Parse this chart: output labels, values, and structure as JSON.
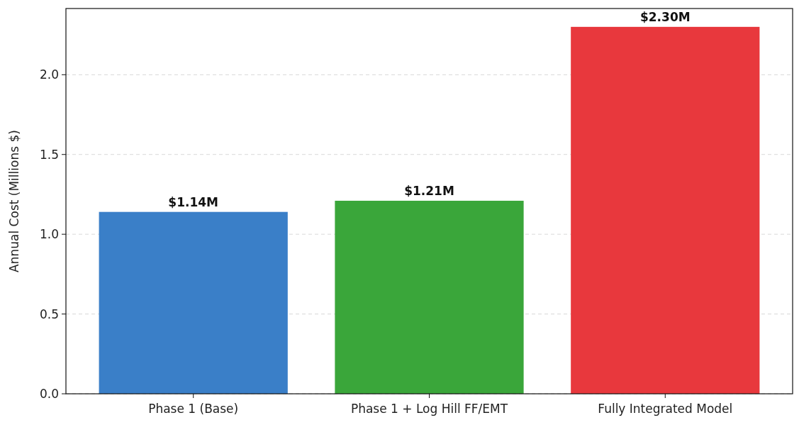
{
  "chart_data": {
    "type": "bar",
    "ylabel": "Annual Cost (Millions $)",
    "categories": [
      "Phase 1 (Base)",
      "Phase 1 + Log Hill FF/EMT",
      "Fully Integrated Model"
    ],
    "values": [
      1.14,
      1.21,
      2.3
    ],
    "colors": [
      "#3a7fc8",
      "#3aa63a",
      "#e8383d"
    ],
    "value_labels": [
      "$1.14M",
      "$1.21M",
      "$2.30M"
    ],
    "ylim": [
      0,
      2.415
    ],
    "yticks": [
      {
        "value": 0,
        "label": "0.0"
      },
      {
        "value": 0.5,
        "label": "0.5"
      },
      {
        "value": 1,
        "label": "1.0"
      },
      {
        "value": 1.5,
        "label": "1.5"
      },
      {
        "value": 2,
        "label": "2.0"
      }
    ],
    "grid": "y"
  }
}
